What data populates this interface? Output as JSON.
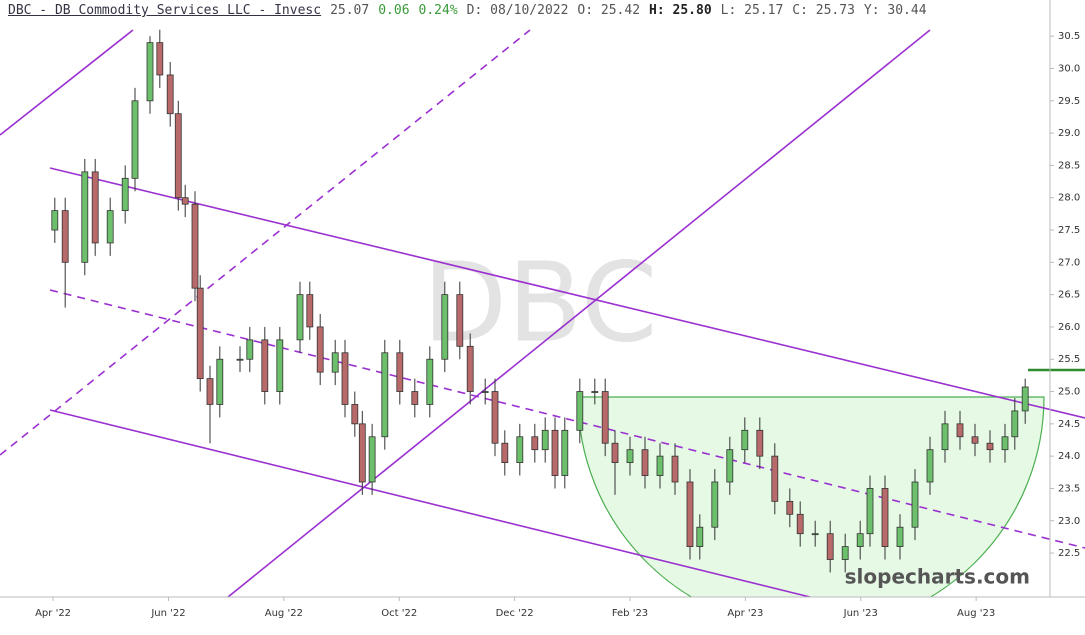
{
  "chart_data": {
    "type": "candlestick",
    "header": {
      "title": "DBC - DB Commodity Services LLC - Invesc",
      "last": "25.07",
      "change": "0.06",
      "change_pct": "0.24%",
      "items": [
        "D: 08/10/2022",
        "O: 25.42",
        "H: 25.80",
        "L: 25.17",
        "C: 25.73",
        "Y: 30.44"
      ]
    },
    "watermark": "DBC",
    "source": "slopecharts.com",
    "up_color": "#6cc06c",
    "down_color": "#b86a6a",
    "x": [
      3.03,
      3.21,
      3.55,
      3.73,
      3.99,
      4.25,
      4.42,
      4.68,
      4.85,
      5.03,
      5.17,
      5.29,
      5.46,
      5.55,
      5.72,
      5.89,
      6.24,
      6.41,
      6.67,
      6.93,
      7.28,
      7.45,
      7.63,
      7.89,
      8.06,
      8.23,
      8.36,
      8.53,
      8.75,
      9.01,
      9.27,
      9.53,
      9.79,
      10.05,
      10.23,
      10.49,
      10.66,
      10.83,
      11.09,
      11.35,
      11.53,
      11.7,
      11.87,
      12.13,
      12.39,
      12.57,
      12.74,
      13.0,
      13.26,
      13.52,
      13.78,
      14.04,
      14.21,
      14.47,
      14.73,
      14.99,
      15.25,
      15.51,
      15.77,
      15.95,
      16.21,
      16.47,
      16.73,
      16.99,
      17.16,
      17.42,
      17.68,
      17.94,
      18.2,
      18.46,
      18.72,
      18.98,
      19.24,
      19.5,
      19.67,
      19.85
    ],
    "open": [
      27.5,
      27.8,
      27.0,
      28.4,
      27.3,
      27.8,
      28.3,
      29.5,
      30.4,
      29.9,
      29.3,
      28.0,
      27.9,
      26.6,
      25.2,
      24.8,
      25.5,
      25.5,
      25.8,
      25.0,
      25.8,
      26.5,
      26.0,
      25.3,
      25.6,
      24.8,
      24.5,
      23.6,
      24.3,
      25.6,
      25.0,
      24.8,
      25.5,
      26.5,
      25.7,
      25.0,
      25.0,
      24.2,
      23.9,
      24.3,
      24.1,
      24.4,
      23.7,
      24.4,
      25.0,
      25.0,
      24.2,
      23.9,
      24.1,
      23.7,
      24.0,
      23.6,
      22.6,
      22.9,
      23.6,
      24.1,
      24.4,
      24.0,
      23.3,
      23.1,
      22.8,
      22.8,
      22.4,
      22.6,
      22.8,
      23.5,
      22.6,
      22.9,
      23.6,
      24.1,
      24.5,
      24.3,
      24.2,
      24.1,
      24.3,
      24.7
    ],
    "high": [
      28.0,
      28.0,
      28.6,
      28.6,
      28.0,
      28.5,
      29.7,
      30.5,
      30.6,
      30.1,
      29.5,
      28.2,
      28.1,
      26.8,
      25.4,
      25.7,
      25.7,
      26.0,
      26.0,
      26.0,
      26.7,
      26.7,
      26.2,
      25.8,
      25.8,
      25.0,
      24.7,
      24.5,
      25.8,
      25.8,
      25.2,
      25.7,
      26.7,
      26.7,
      25.9,
      25.2,
      25.2,
      24.4,
      24.5,
      24.5,
      24.6,
      24.6,
      24.6,
      25.2,
      25.2,
      25.2,
      24.4,
      24.3,
      24.3,
      24.2,
      24.2,
      23.8,
      23.1,
      23.8,
      24.3,
      24.6,
      24.6,
      24.2,
      23.5,
      23.3,
      23.0,
      23.0,
      22.8,
      23.0,
      23.7,
      23.7,
      23.1,
      23.8,
      24.3,
      24.7,
      24.7,
      24.5,
      24.4,
      24.5,
      24.9,
      25.2
    ],
    "low": [
      27.3,
      26.3,
      26.8,
      27.1,
      27.1,
      27.6,
      28.1,
      29.3,
      29.7,
      29.1,
      27.8,
      27.7,
      26.4,
      25.0,
      24.2,
      24.6,
      25.3,
      25.3,
      24.8,
      24.8,
      25.6,
      25.8,
      25.1,
      25.1,
      24.6,
      24.3,
      23.4,
      23.4,
      24.1,
      24.8,
      24.6,
      24.6,
      25.3,
      25.5,
      24.8,
      24.8,
      24.0,
      23.7,
      23.7,
      23.9,
      23.9,
      23.5,
      23.5,
      24.2,
      24.8,
      24.0,
      23.4,
      23.7,
      23.5,
      23.5,
      23.4,
      22.4,
      22.4,
      22.7,
      23.4,
      23.9,
      23.8,
      23.1,
      22.9,
      22.6,
      22.6,
      22.2,
      22.2,
      22.4,
      22.6,
      22.4,
      22.4,
      22.7,
      23.4,
      23.9,
      24.1,
      24.0,
      23.9,
      23.9,
      24.1,
      24.5
    ],
    "close": [
      27.8,
      27.0,
      28.4,
      27.3,
      27.8,
      28.3,
      29.5,
      30.4,
      29.9,
      29.3,
      28.0,
      27.9,
      26.6,
      25.2,
      24.8,
      25.5,
      25.5,
      25.8,
      25.0,
      25.8,
      26.5,
      26.0,
      25.3,
      25.6,
      24.8,
      24.5,
      23.6,
      24.3,
      25.6,
      25.0,
      24.8,
      25.5,
      26.5,
      25.7,
      25.0,
      25.0,
      24.2,
      23.9,
      24.3,
      24.1,
      24.4,
      23.7,
      24.4,
      25.0,
      25.0,
      24.2,
      23.9,
      24.1,
      23.7,
      24.0,
      23.6,
      22.6,
      22.9,
      23.6,
      24.1,
      24.4,
      24.0,
      23.3,
      23.1,
      22.8,
      22.8,
      22.4,
      22.6,
      22.8,
      23.5,
      22.6,
      22.9,
      23.6,
      24.1,
      24.5,
      24.3,
      24.2,
      24.1,
      24.3,
      24.7,
      25.07
    ],
    "xlim": [
      2.08,
      20.28
    ],
    "xticks": [
      {
        "value": 3,
        "label": "Apr '22"
      },
      {
        "value": 5,
        "label": "Jun '22"
      },
      {
        "value": 7,
        "label": "Aug '22"
      },
      {
        "value": 9,
        "label": "Oct '22"
      },
      {
        "value": 11,
        "label": "Dec '22"
      },
      {
        "value": 13,
        "label": "Feb '23"
      },
      {
        "value": 15,
        "label": "Apr '23"
      },
      {
        "value": 17,
        "label": "Jun '23"
      },
      {
        "value": 19,
        "label": "Aug '23"
      }
    ],
    "ylim": [
      21.82,
      31.06
    ],
    "yticks": [
      22.5,
      {
        "value": 23,
        "label": "23.0"
      },
      23.5,
      {
        "value": 24,
        "label": "24.0"
      },
      24.5,
      {
        "value": 25,
        "label": "25.0"
      },
      25.5,
      {
        "value": 26,
        "label": "26.0"
      },
      26.5,
      {
        "value": 27,
        "label": "27.0"
      },
      27.5,
      {
        "value": 28,
        "label": "28.0"
      },
      28.5,
      {
        "value": 29,
        "label": "29.0"
      },
      29.5,
      {
        "value": 30,
        "label": "30.0"
      },
      30.5
    ]
  }
}
